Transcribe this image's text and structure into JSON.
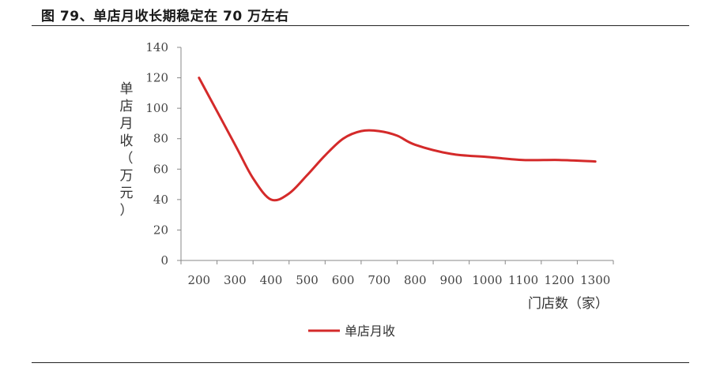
{
  "figure": {
    "title": "图 79、单店月收长期稳定在 70 万左右"
  },
  "chart_data": {
    "type": "line",
    "xlabel": "门店数（家）",
    "ylabel": "单店月收（万元）",
    "x_categories": [
      200,
      300,
      400,
      500,
      600,
      700,
      800,
      900,
      1000,
      1100,
      1200,
      1300
    ],
    "ylim": [
      0,
      140
    ],
    "y_ticks": [
      0,
      20,
      40,
      60,
      80,
      100,
      120,
      140
    ],
    "grid": false,
    "legend": "bottom-center",
    "series": [
      {
        "name": "单店月收",
        "color": "#d42a2a",
        "points": [
          {
            "x": 200,
            "y": 120
          },
          {
            "x": 300,
            "y": 76
          },
          {
            "x": 350,
            "y": 54
          },
          {
            "x": 400,
            "y": 40
          },
          {
            "x": 450,
            "y": 44
          },
          {
            "x": 500,
            "y": 56
          },
          {
            "x": 550,
            "y": 69
          },
          {
            "x": 600,
            "y": 80
          },
          {
            "x": 650,
            "y": 85
          },
          {
            "x": 700,
            "y": 85
          },
          {
            "x": 750,
            "y": 82
          },
          {
            "x": 800,
            "y": 76
          },
          {
            "x": 900,
            "y": 70
          },
          {
            "x": 1000,
            "y": 68
          },
          {
            "x": 1100,
            "y": 66
          },
          {
            "x": 1200,
            "y": 66
          },
          {
            "x": 1300,
            "y": 65
          }
        ]
      }
    ]
  }
}
